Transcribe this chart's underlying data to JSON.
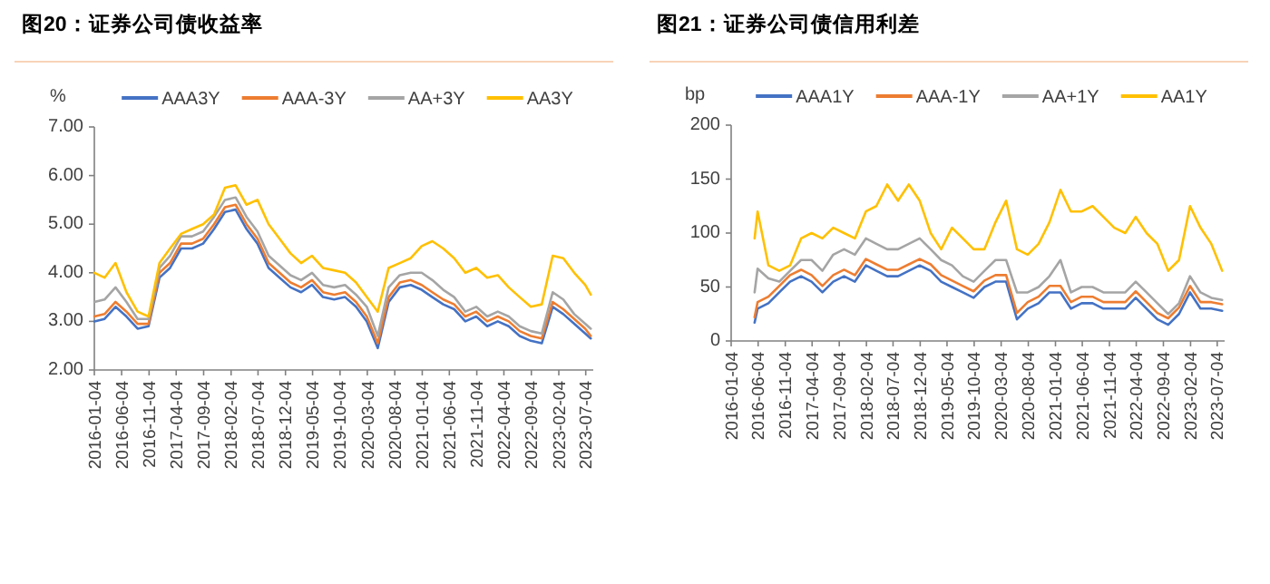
{
  "chart_data": [
    {
      "type": "line",
      "title": "图20：证券公司债收益率",
      "ylabel": "%",
      "legend": "top",
      "grid": false,
      "x": [
        "2016-01-04",
        "2016-03",
        "2016-05",
        "2016-07",
        "2016-09",
        "2016-11",
        "2017-01",
        "2017-03",
        "2017-05",
        "2017-07",
        "2017-09",
        "2017-11",
        "2018-01",
        "2018-03",
        "2018-05",
        "2018-07",
        "2018-09",
        "2018-11",
        "2019-01",
        "2019-03",
        "2019-05",
        "2019-07",
        "2019-09",
        "2019-11",
        "2020-01",
        "2020-03",
        "2020-05",
        "2020-07",
        "2020-09",
        "2020-11",
        "2021-01",
        "2021-03",
        "2021-05",
        "2021-07",
        "2021-09",
        "2021-11",
        "2022-01",
        "2022-03",
        "2022-05",
        "2022-07",
        "2022-09",
        "2022-11",
        "2023-01",
        "2023-03",
        "2023-05",
        "2023-07",
        "2023-08"
      ],
      "xlim": [
        "2016-01-04",
        "2023-08-15"
      ],
      "xticks": [
        "2016-01-04",
        "2016-06-04",
        "2016-11-04",
        "2017-04-04",
        "2017-09-04",
        "2018-02-04",
        "2018-07-04",
        "2018-12-04",
        "2019-05-04",
        "2019-10-04",
        "2020-03-04",
        "2020-08-04",
        "2021-01-04",
        "2021-06-04",
        "2021-11-04",
        "2022-04-04",
        "2022-09-04",
        "2023-02-04",
        "2023-07-04"
      ],
      "ylim": [
        2,
        7
      ],
      "yticks": [
        {
          "value": 2,
          "label": "2.00"
        },
        {
          "value": 3,
          "label": "3.00"
        },
        {
          "value": 4,
          "label": "4.00"
        },
        {
          "value": 5,
          "label": "5.00"
        },
        {
          "value": 6,
          "label": "6.00"
        },
        {
          "value": 7,
          "label": "7.00"
        }
      ],
      "series": [
        {
          "name": "AAA3Y",
          "color": "#4472c4",
          "values": [
            3.0,
            3.05,
            3.3,
            3.1,
            2.85,
            2.9,
            3.9,
            4.1,
            4.5,
            4.5,
            4.6,
            4.9,
            5.25,
            5.3,
            4.9,
            4.6,
            4.1,
            3.9,
            3.7,
            3.6,
            3.75,
            3.5,
            3.45,
            3.5,
            3.3,
            3.0,
            2.45,
            3.4,
            3.7,
            3.75,
            3.65,
            3.5,
            3.35,
            3.25,
            3.0,
            3.1,
            2.9,
            3.0,
            2.9,
            2.7,
            2.6,
            2.55,
            3.3,
            3.15,
            2.95,
            2.75,
            2.65
          ]
        },
        {
          "name": "AAA-3Y",
          "color": "#ed7d31",
          "values": [
            3.1,
            3.15,
            3.4,
            3.2,
            2.95,
            2.95,
            4.0,
            4.2,
            4.6,
            4.6,
            4.7,
            5.0,
            5.35,
            5.4,
            5.0,
            4.7,
            4.2,
            4.0,
            3.8,
            3.7,
            3.85,
            3.6,
            3.55,
            3.6,
            3.4,
            3.1,
            2.55,
            3.5,
            3.8,
            3.85,
            3.75,
            3.6,
            3.45,
            3.35,
            3.1,
            3.2,
            3.0,
            3.1,
            3.0,
            2.8,
            2.7,
            2.65,
            3.4,
            3.25,
            3.05,
            2.85,
            2.7
          ]
        },
        {
          "name": "AA+3Y",
          "color": "#a5a5a5",
          "values": [
            3.4,
            3.45,
            3.7,
            3.4,
            3.05,
            3.05,
            4.1,
            4.35,
            4.75,
            4.75,
            4.85,
            5.15,
            5.5,
            5.55,
            5.15,
            4.85,
            4.35,
            4.15,
            3.95,
            3.85,
            4.0,
            3.75,
            3.7,
            3.75,
            3.55,
            3.3,
            2.7,
            3.7,
            3.95,
            4.0,
            4.0,
            3.85,
            3.65,
            3.5,
            3.2,
            3.3,
            3.1,
            3.2,
            3.1,
            2.9,
            2.8,
            2.75,
            3.6,
            3.45,
            3.15,
            2.95,
            2.85
          ]
        },
        {
          "name": "AA3Y",
          "color": "#ffc000",
          "values": [
            4.0,
            3.9,
            4.2,
            3.6,
            3.2,
            3.1,
            4.2,
            4.5,
            4.8,
            4.9,
            5.0,
            5.2,
            5.75,
            5.8,
            5.4,
            5.5,
            5.0,
            4.7,
            4.4,
            4.2,
            4.35,
            4.1,
            4.05,
            4.0,
            3.8,
            3.5,
            3.2,
            4.1,
            4.2,
            4.3,
            4.55,
            4.65,
            4.5,
            4.3,
            4.0,
            4.1,
            3.9,
            3.95,
            3.7,
            3.5,
            3.3,
            3.35,
            4.35,
            4.3,
            4.0,
            3.75,
            3.55
          ]
        }
      ]
    },
    {
      "type": "line",
      "title": "图21：证券公司债信用利差",
      "ylabel": "bp",
      "legend": "top",
      "grid": false,
      "x": [
        "2016-05-15",
        "2016-06",
        "2016-08",
        "2016-10",
        "2016-12",
        "2017-02",
        "2017-04",
        "2017-06",
        "2017-08",
        "2017-10",
        "2017-12",
        "2018-02",
        "2018-04",
        "2018-06",
        "2018-08",
        "2018-10",
        "2018-12",
        "2019-02",
        "2019-04",
        "2019-06",
        "2019-08",
        "2019-10",
        "2019-12",
        "2020-02",
        "2020-04",
        "2020-06",
        "2020-08",
        "2020-10",
        "2020-12",
        "2021-02",
        "2021-04",
        "2021-06",
        "2021-08",
        "2021-10",
        "2021-12",
        "2022-02",
        "2022-04",
        "2022-06",
        "2022-08",
        "2022-10",
        "2022-12",
        "2023-02",
        "2023-04",
        "2023-06",
        "2023-08"
      ],
      "xlim": [
        "2016-01-04",
        "2023-08-15"
      ],
      "xticks": [
        "2016-01-04",
        "2016-06-04",
        "2016-11-04",
        "2017-04-04",
        "2017-09-04",
        "2018-02-04",
        "2018-07-04",
        "2018-12-04",
        "2019-05-04",
        "2019-10-04",
        "2020-03-04",
        "2020-08-04",
        "2021-01-04",
        "2021-06-04",
        "2021-11-04",
        "2022-04-04",
        "2022-09-04",
        "2023-02-04",
        "2023-07-04"
      ],
      "ylim": [
        0,
        200
      ],
      "yticks": [
        0,
        50,
        100,
        150,
        200
      ],
      "series": [
        {
          "name": "AAA1Y",
          "color": "#4472c4",
          "values": [
            17,
            30,
            35,
            45,
            55,
            60,
            55,
            45,
            55,
            60,
            55,
            70,
            65,
            60,
            60,
            65,
            70,
            65,
            55,
            50,
            45,
            40,
            50,
            55,
            55,
            20,
            30,
            35,
            45,
            45,
            30,
            35,
            35,
            30,
            30,
            30,
            40,
            30,
            20,
            15,
            25,
            45,
            30,
            30,
            28
          ]
        },
        {
          "name": "AAA-1Y",
          "color": "#ed7d31",
          "values": [
            22,
            36,
            41,
            51,
            61,
            66,
            61,
            51,
            61,
            66,
            61,
            76,
            71,
            66,
            66,
            71,
            76,
            71,
            61,
            56,
            51,
            46,
            56,
            61,
            61,
            26,
            36,
            41,
            51,
            51,
            36,
            41,
            41,
            36,
            36,
            36,
            46,
            36,
            26,
            21,
            31,
            51,
            36,
            36,
            34
          ]
        },
        {
          "name": "AA+1Y",
          "color": "#a5a5a5",
          "values": [
            45,
            67,
            58,
            55,
            65,
            75,
            75,
            65,
            80,
            85,
            80,
            95,
            90,
            85,
            85,
            90,
            95,
            85,
            75,
            70,
            60,
            55,
            65,
            75,
            75,
            45,
            45,
            50,
            60,
            75,
            45,
            50,
            50,
            45,
            45,
            45,
            55,
            45,
            35,
            25,
            35,
            60,
            45,
            40,
            38
          ]
        },
        {
          "name": "AA1Y",
          "color": "#ffc000",
          "values": [
            95,
            120,
            70,
            65,
            70,
            95,
            100,
            95,
            105,
            100,
            95,
            120,
            125,
            145,
            130,
            145,
            130,
            100,
            85,
            105,
            95,
            85,
            85,
            110,
            130,
            85,
            80,
            90,
            110,
            140,
            120,
            120,
            125,
            115,
            105,
            100,
            115,
            100,
            90,
            65,
            75,
            125,
            105,
            90,
            65
          ]
        }
      ]
    }
  ]
}
